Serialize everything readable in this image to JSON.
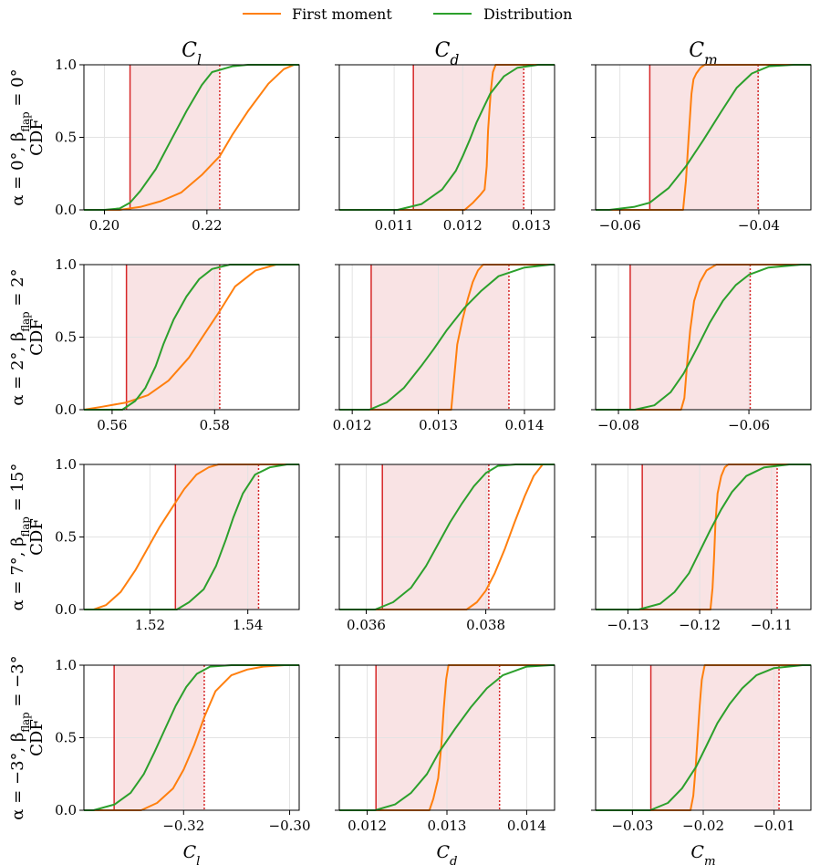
{
  "legend": {
    "first_moment": "First moment",
    "distribution": "Distribution"
  },
  "colors": {
    "first_moment": "#ff7f0e",
    "distribution": "#2ca02c",
    "bounds": "#d62728",
    "band_fill": "#f9e3e4"
  },
  "column_titles": [
    "C_l",
    "C_d",
    "C_m"
  ],
  "column_xlabels": [
    "C_l",
    "C_d",
    "C_m"
  ],
  "row_labels": [
    {
      "text": "α = 0°, β_flap = 0°",
      "ylabel": "CDF"
    },
    {
      "text": "α = 2°, β_flap = 2°",
      "ylabel": "CDF"
    },
    {
      "text": "α = 7°, β_flap = 15°",
      "ylabel": "CDF"
    },
    {
      "text": "α = −3°, β_flap = −3°",
      "ylabel": "CDF"
    }
  ],
  "y_axis": {
    "ylim": [
      0,
      1
    ],
    "ticks": [
      0,
      0.5,
      1
    ],
    "tick_labels": [
      "0.0",
      "0.5",
      "1.0"
    ]
  },
  "chart_data": [
    {
      "type": "line",
      "title": "C_l",
      "row": 0,
      "col": 0,
      "xlim": [
        0.196,
        0.238
      ],
      "xticks": [
        0.2,
        0.22
      ],
      "xtick_labels": [
        "0.20",
        "0.22"
      ],
      "bounds": [
        0.205,
        0.2225
      ],
      "series": [
        {
          "name": "First moment",
          "x": [
            0.203,
            0.207,
            0.211,
            0.215,
            0.219,
            0.2225,
            0.225,
            0.228,
            0.232,
            0.235,
            0.237
          ],
          "y": [
            0,
            0.02,
            0.06,
            0.12,
            0.24,
            0.37,
            0.52,
            0.68,
            0.87,
            0.97,
            1
          ]
        },
        {
          "name": "Distribution",
          "x": [
            0.2,
            0.203,
            0.205,
            0.207,
            0.21,
            0.213,
            0.216,
            0.219,
            0.221,
            0.225,
            0.228
          ],
          "y": [
            0,
            0.01,
            0.05,
            0.13,
            0.28,
            0.48,
            0.68,
            0.86,
            0.95,
            0.99,
            1
          ]
        }
      ]
    },
    {
      "type": "line",
      "title": "C_d",
      "row": 0,
      "col": 1,
      "xlim": [
        0.0102,
        0.01334
      ],
      "xticks": [
        0.011,
        0.012,
        0.013
      ],
      "xtick_labels": [
        "0.011",
        "0.012",
        "0.013"
      ],
      "bounds": [
        0.01128,
        0.01289
      ],
      "series": [
        {
          "name": "First moment",
          "x": [
            0.01203,
            0.01215,
            0.01225,
            0.01232,
            0.01235,
            0.01237,
            0.01241,
            0.01244,
            0.01248
          ],
          "y": [
            0,
            0.05,
            0.1,
            0.14,
            0.3,
            0.55,
            0.82,
            0.95,
            1
          ]
        },
        {
          "name": "Distribution",
          "x": [
            0.01105,
            0.0114,
            0.0117,
            0.0119,
            0.012,
            0.0121,
            0.0122,
            0.0123,
            0.0124,
            0.0126,
            0.0128,
            0.0131
          ],
          "y": [
            0,
            0.04,
            0.14,
            0.27,
            0.37,
            0.48,
            0.6,
            0.7,
            0.8,
            0.92,
            0.98,
            1
          ]
        }
      ]
    },
    {
      "type": "line",
      "title": "C_m",
      "row": 0,
      "col": 2,
      "xlim": [
        -0.0635,
        -0.0325
      ],
      "xticks": [
        -0.06,
        -0.04
      ],
      "xtick_labels": [
        "−0.06",
        "−0.04"
      ],
      "bounds": [
        -0.0557,
        -0.0401
      ],
      "series": [
        {
          "name": "First moment",
          "x": [
            -0.0509,
            -0.0505,
            -0.0501,
            -0.0497,
            -0.0494,
            -0.049,
            -0.0484,
            -0.0478
          ],
          "y": [
            0,
            0.2,
            0.5,
            0.8,
            0.9,
            0.94,
            0.98,
            1
          ]
        },
        {
          "name": "Distribution",
          "x": [
            -0.0615,
            -0.058,
            -0.0557,
            -0.053,
            -0.0505,
            -0.048,
            -0.0455,
            -0.0432,
            -0.041,
            -0.0385,
            -0.035
          ],
          "y": [
            0,
            0.02,
            0.05,
            0.15,
            0.3,
            0.48,
            0.67,
            0.84,
            0.94,
            0.99,
            1
          ]
        }
      ]
    },
    {
      "type": "line",
      "title": "C_l",
      "row": 1,
      "col": 0,
      "xlim": [
        0.5545,
        0.5965
      ],
      "xticks": [
        0.56,
        0.58
      ],
      "xtick_labels": [
        "0.56",
        "0.58"
      ],
      "bounds": [
        0.5628,
        0.581
      ],
      "series": [
        {
          "name": "First moment",
          "x": [
            0.5545,
            0.558,
            0.5628,
            0.567,
            0.571,
            0.575,
            0.578,
            0.581,
            0.584,
            0.588,
            0.592
          ],
          "y": [
            0,
            0.02,
            0.05,
            0.1,
            0.2,
            0.36,
            0.52,
            0.68,
            0.85,
            0.96,
            1
          ]
        },
        {
          "name": "Distribution",
          "x": [
            0.562,
            0.5645,
            0.5665,
            0.5685,
            0.57,
            0.572,
            0.5745,
            0.577,
            0.5795,
            0.583
          ],
          "y": [
            0,
            0.06,
            0.15,
            0.3,
            0.45,
            0.62,
            0.78,
            0.9,
            0.97,
            1
          ]
        }
      ]
    },
    {
      "type": "line",
      "title": "C_d",
      "row": 1,
      "col": 1,
      "xlim": [
        0.01185,
        0.01435
      ],
      "xticks": [
        0.012,
        0.013,
        0.014
      ],
      "xtick_labels": [
        "0.012",
        "0.013",
        "0.014"
      ],
      "bounds": [
        0.01222,
        0.01382
      ],
      "series": [
        {
          "name": "First moment",
          "x": [
            0.01315,
            0.01318,
            0.01322,
            0.01328,
            0.01334,
            0.0134,
            0.01346,
            0.01352
          ],
          "y": [
            0,
            0.2,
            0.45,
            0.62,
            0.76,
            0.88,
            0.96,
            1
          ]
        },
        {
          "name": "Distribution",
          "x": [
            0.0122,
            0.0124,
            0.0126,
            0.0128,
            0.01295,
            0.0131,
            0.0133,
            0.0135,
            0.0137,
            0.014,
            0.0143
          ],
          "y": [
            0,
            0.05,
            0.15,
            0.3,
            0.42,
            0.55,
            0.7,
            0.82,
            0.92,
            0.98,
            1
          ]
        }
      ]
    },
    {
      "type": "line",
      "title": "C_m",
      "row": 1,
      "col": 2,
      "xlim": [
        -0.0835,
        -0.0505
      ],
      "xticks": [
        -0.08,
        -0.06
      ],
      "xtick_labels": [
        "−0.08",
        "−0.06"
      ],
      "bounds": [
        -0.0782,
        -0.0598
      ],
      "series": [
        {
          "name": "First moment",
          "x": [
            -0.0704,
            -0.0699,
            -0.0695,
            -0.069,
            -0.0684,
            -0.0675,
            -0.0665,
            -0.065
          ],
          "y": [
            0,
            0.08,
            0.3,
            0.55,
            0.75,
            0.88,
            0.96,
            1
          ]
        },
        {
          "name": "Distribution",
          "x": [
            -0.0775,
            -0.0745,
            -0.072,
            -0.07,
            -0.068,
            -0.066,
            -0.064,
            -0.062,
            -0.06,
            -0.057,
            -0.052
          ],
          "y": [
            0,
            0.03,
            0.12,
            0.25,
            0.42,
            0.6,
            0.75,
            0.86,
            0.93,
            0.98,
            1
          ]
        }
      ]
    },
    {
      "type": "line",
      "title": "C_l",
      "row": 2,
      "col": 0,
      "xlim": [
        1.5065,
        1.5505
      ],
      "xticks": [
        1.52,
        1.54
      ],
      "xtick_labels": [
        "1.52",
        "1.54"
      ],
      "bounds": [
        1.5252,
        1.5422
      ],
      "series": [
        {
          "name": "First moment",
          "x": [
            1.5085,
            1.511,
            1.514,
            1.517,
            1.5195,
            1.522,
            1.5245,
            1.527,
            1.5295,
            1.532,
            1.534
          ],
          "y": [
            0,
            0.03,
            0.12,
            0.27,
            0.42,
            0.57,
            0.7,
            0.83,
            0.93,
            0.98,
            1
          ]
        },
        {
          "name": "Distribution",
          "x": [
            1.5255,
            1.528,
            1.531,
            1.5335,
            1.5355,
            1.537,
            1.539,
            1.5415,
            1.5445,
            1.548
          ],
          "y": [
            0,
            0.05,
            0.14,
            0.3,
            0.48,
            0.63,
            0.8,
            0.93,
            0.98,
            1
          ]
        }
      ]
    },
    {
      "type": "line",
      "title": "C_d",
      "row": 2,
      "col": 1,
      "xlim": [
        0.03555,
        0.03915
      ],
      "xticks": [
        0.036,
        0.038
      ],
      "xtick_labels": [
        "0.036",
        "0.038"
      ],
      "bounds": [
        0.03627,
        0.03805
      ],
      "series": [
        {
          "name": "First moment",
          "x": [
            0.03768,
            0.03785,
            0.038,
            0.03815,
            0.03832,
            0.03848,
            0.03865,
            0.0388,
            0.03895
          ],
          "y": [
            0,
            0.05,
            0.13,
            0.25,
            0.42,
            0.6,
            0.78,
            0.92,
            1
          ]
        },
        {
          "name": "Distribution",
          "x": [
            0.03615,
            0.03645,
            0.03675,
            0.037,
            0.0372,
            0.0374,
            0.0376,
            0.0378,
            0.038,
            0.0382,
            0.0385
          ],
          "y": [
            0,
            0.05,
            0.15,
            0.3,
            0.45,
            0.6,
            0.73,
            0.85,
            0.94,
            0.99,
            1
          ]
        }
      ]
    },
    {
      "type": "line",
      "title": "C_m",
      "row": 2,
      "col": 2,
      "xlim": [
        -0.1345,
        -0.1045
      ],
      "xticks": [
        -0.13,
        -0.12,
        -0.11
      ],
      "xtick_labels": [
        "−0.13",
        "−0.12",
        "−0.11"
      ],
      "bounds": [
        -0.128,
        -0.1092
      ],
      "series": [
        {
          "name": "First moment",
          "x": [
            -0.1185,
            -0.1182,
            -0.118,
            -0.1178,
            -0.1175,
            -0.117,
            -0.1165,
            -0.116
          ],
          "y": [
            0,
            0.15,
            0.35,
            0.6,
            0.8,
            0.92,
            0.98,
            1
          ]
        },
        {
          "name": "Distribution",
          "x": [
            -0.1285,
            -0.1255,
            -0.1235,
            -0.1215,
            -0.12,
            -0.1185,
            -0.117,
            -0.1155,
            -0.1135,
            -0.111,
            -0.1075
          ],
          "y": [
            0,
            0.04,
            0.12,
            0.25,
            0.4,
            0.55,
            0.69,
            0.81,
            0.92,
            0.98,
            1
          ]
        }
      ]
    },
    {
      "type": "line",
      "title": "C_l",
      "row": 3,
      "col": 0,
      "xlim": [
        -0.3388,
        -0.2982
      ],
      "xticks": [
        -0.32,
        -0.3
      ],
      "xtick_labels": [
        "−0.32",
        "−0.30"
      ],
      "bounds": [
        -0.3331,
        -0.3161
      ],
      "series": [
        {
          "name": "First moment",
          "x": [
            -0.328,
            -0.325,
            -0.322,
            -0.32,
            -0.318,
            -0.316,
            -0.314,
            -0.311,
            -0.308,
            -0.305,
            -0.301
          ],
          "y": [
            0,
            0.05,
            0.15,
            0.28,
            0.45,
            0.65,
            0.82,
            0.93,
            0.97,
            0.99,
            1
          ]
        },
        {
          "name": "Distribution",
          "x": [
            -0.337,
            -0.333,
            -0.33,
            -0.3275,
            -0.3255,
            -0.3235,
            -0.3215,
            -0.3195,
            -0.3175,
            -0.315,
            -0.311
          ],
          "y": [
            0,
            0.04,
            0.12,
            0.25,
            0.4,
            0.56,
            0.72,
            0.85,
            0.94,
            0.99,
            1
          ]
        }
      ]
    },
    {
      "type": "line",
      "title": "C_d",
      "row": 3,
      "col": 1,
      "xlim": [
        0.01165,
        0.01435
      ],
      "xticks": [
        0.012,
        0.013,
        0.014
      ],
      "xtick_labels": [
        "0.012",
        "0.013",
        "0.014"
      ],
      "bounds": [
        0.01211,
        0.01366
      ],
      "series": [
        {
          "name": "First moment",
          "x": [
            0.01278,
            0.01283,
            0.01289,
            0.01293,
            0.01296,
            0.01299,
            0.01302
          ],
          "y": [
            0,
            0.08,
            0.22,
            0.45,
            0.7,
            0.9,
            1
          ]
        },
        {
          "name": "Distribution",
          "x": [
            0.0121,
            0.01235,
            0.01255,
            0.01275,
            0.0129,
            0.0131,
            0.0133,
            0.0135,
            0.0137,
            0.014,
            0.0143
          ],
          "y": [
            0,
            0.04,
            0.12,
            0.25,
            0.4,
            0.56,
            0.71,
            0.84,
            0.93,
            0.99,
            1
          ]
        }
      ]
    },
    {
      "type": "line",
      "title": "C_m",
      "row": 3,
      "col": 2,
      "xlim": [
        -0.0352,
        -0.0048
      ],
      "xticks": [
        -0.03,
        -0.02,
        -0.01
      ],
      "xtick_labels": [
        "−0.03",
        "−0.02",
        "−0.01"
      ],
      "bounds": [
        -0.0274,
        -0.0093
      ],
      "series": [
        {
          "name": "First moment",
          "x": [
            -0.0218,
            -0.0214,
            -0.0211,
            -0.0208,
            -0.0205,
            -0.0202,
            -0.0198
          ],
          "y": [
            0,
            0.1,
            0.28,
            0.5,
            0.72,
            0.9,
            1
          ]
        },
        {
          "name": "Distribution",
          "x": [
            -0.0275,
            -0.025,
            -0.023,
            -0.021,
            -0.0195,
            -0.018,
            -0.0163,
            -0.0145,
            -0.0125,
            -0.01,
            -0.006
          ],
          "y": [
            0,
            0.05,
            0.15,
            0.3,
            0.45,
            0.6,
            0.73,
            0.84,
            0.93,
            0.98,
            1
          ]
        }
      ]
    }
  ]
}
